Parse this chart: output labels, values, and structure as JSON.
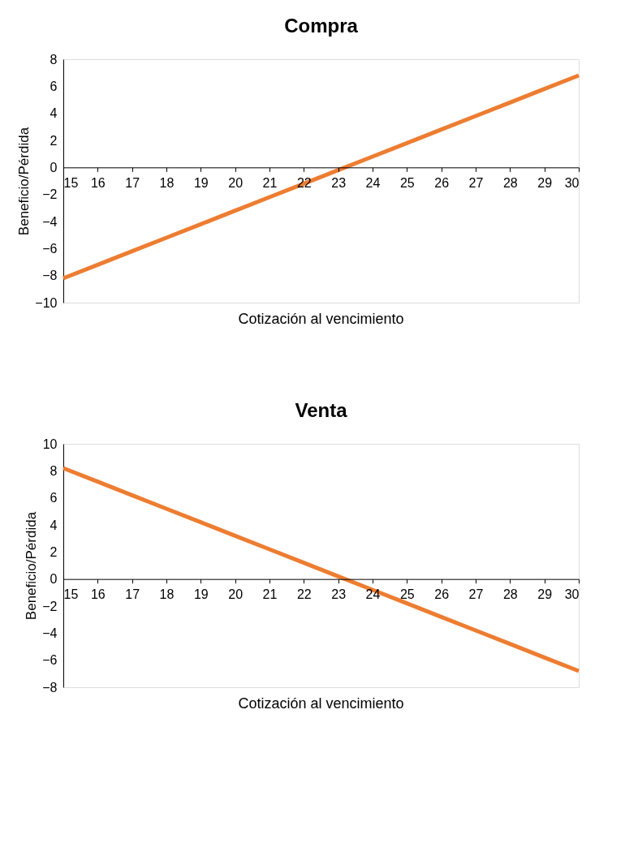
{
  "chart_data": [
    {
      "type": "line",
      "title": "Compra",
      "xlabel": "Cotización al vencimiento",
      "ylabel": "Beneficio/Pérdida",
      "x": [
        15,
        16,
        17,
        18,
        19,
        20,
        21,
        22,
        23,
        24,
        25,
        26,
        27,
        28,
        29,
        30
      ],
      "series": [
        {
          "color": "#ed7d31",
          "values": [
            -8.2,
            -7.2,
            -6.2,
            -5.2,
            -4.2,
            -3.2,
            -2.2,
            -1.2,
            -0.2,
            0.8,
            1.8,
            2.8,
            3.8,
            4.8,
            5.8,
            6.8
          ]
        }
      ],
      "xlim": [
        15,
        30
      ],
      "xticks": [
        15,
        16,
        17,
        18,
        19,
        20,
        21,
        22,
        23,
        24,
        25,
        26,
        27,
        28,
        29,
        30
      ],
      "ylim": [
        -10,
        8
      ],
      "yticks": [
        -10,
        -8,
        -6,
        -4,
        -2,
        0,
        2,
        4,
        6,
        8
      ],
      "grid": false,
      "marker": "none",
      "line_style": "solid"
    },
    {
      "type": "line",
      "title": "Venta",
      "xlabel": "Cotización al vencimiento",
      "ylabel": "Beneficio/Pérdida",
      "x": [
        15,
        16,
        17,
        18,
        19,
        20,
        21,
        22,
        23,
        24,
        25,
        26,
        27,
        28,
        29,
        30
      ],
      "series": [
        {
          "color": "#ed7d31",
          "values": [
            8.2,
            7.2,
            6.2,
            5.2,
            4.2,
            3.2,
            2.2,
            1.2,
            0.2,
            -0.8,
            -1.8,
            -2.8,
            -3.8,
            -4.8,
            -5.8,
            -6.8
          ]
        }
      ],
      "xlim": [
        15,
        30
      ],
      "xticks": [
        15,
        16,
        17,
        18,
        19,
        20,
        21,
        22,
        23,
        24,
        25,
        26,
        27,
        28,
        29,
        30
      ],
      "ylim": [
        -8,
        10
      ],
      "yticks": [
        -8,
        -6,
        -4,
        -2,
        0,
        2,
        4,
        6,
        8,
        10
      ],
      "grid": false,
      "marker": "none",
      "line_style": "solid"
    }
  ]
}
